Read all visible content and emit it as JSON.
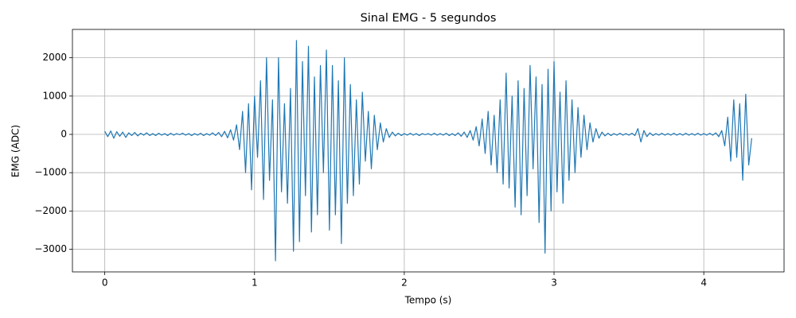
{
  "chart_data": {
    "type": "line",
    "title": "Sinal EMG - 5 segundos",
    "xlabel": "Tempo (s)",
    "ylabel": "EMG (ADC)",
    "color": "#1f77b4",
    "grid": true,
    "xlim": [
      -0.216,
      4.536
    ],
    "ylim": [
      -3590,
      2740
    ],
    "xticks": [
      0,
      1,
      2,
      3,
      4
    ],
    "yticks": [
      {
        "value": -3000,
        "label": "−3000"
      },
      {
        "value": -2000,
        "label": "−2000"
      },
      {
        "value": -1000,
        "label": "−1000"
      },
      0,
      1000,
      2000
    ],
    "x": [
      0,
      0.02,
      0.04,
      0.06,
      0.08,
      0.1,
      0.12,
      0.14,
      0.16,
      0.18,
      0.2,
      0.22,
      0.24,
      0.26,
      0.28,
      0.3,
      0.32,
      0.34,
      0.36,
      0.38,
      0.4,
      0.42,
      0.44,
      0.46,
      0.48,
      0.5,
      0.52,
      0.54,
      0.56,
      0.58,
      0.6,
      0.62,
      0.64,
      0.66,
      0.68,
      0.7,
      0.72,
      0.74,
      0.76,
      0.78,
      0.8,
      0.82,
      0.84,
      0.86,
      0.88,
      0.9,
      0.92,
      0.94,
      0.96,
      0.98,
      1,
      1.02,
      1.04,
      1.06,
      1.08,
      1.1,
      1.12,
      1.14,
      1.16,
      1.18,
      1.2,
      1.22,
      1.24,
      1.26,
      1.28,
      1.3,
      1.32,
      1.34,
      1.36,
      1.38,
      1.4,
      1.42,
      1.44,
      1.46,
      1.48,
      1.5,
      1.52,
      1.54,
      1.56,
      1.58,
      1.6,
      1.62,
      1.64,
      1.66,
      1.68,
      1.7,
      1.72,
      1.74,
      1.76,
      1.78,
      1.8,
      1.82,
      1.84,
      1.86,
      1.88,
      1.9,
      1.92,
      1.94,
      1.96,
      1.98,
      2,
      2.02,
      2.04,
      2.06,
      2.08,
      2.1,
      2.12,
      2.14,
      2.16,
      2.18,
      2.2,
      2.22,
      2.24,
      2.26,
      2.28,
      2.3,
      2.32,
      2.34,
      2.36,
      2.38,
      2.4,
      2.42,
      2.44,
      2.46,
      2.48,
      2.5,
      2.52,
      2.54,
      2.56,
      2.58,
      2.6,
      2.62,
      2.64,
      2.66,
      2.68,
      2.7,
      2.72,
      2.74,
      2.76,
      2.78,
      2.8,
      2.82,
      2.84,
      2.86,
      2.88,
      2.9,
      2.92,
      2.94,
      2.96,
      2.98,
      3,
      3.02,
      3.04,
      3.06,
      3.08,
      3.1,
      3.12,
      3.14,
      3.16,
      3.18,
      3.2,
      3.22,
      3.24,
      3.26,
      3.28,
      3.3,
      3.32,
      3.34,
      3.36,
      3.38,
      3.4,
      3.42,
      3.44,
      3.46,
      3.48,
      3.5,
      3.52,
      3.54,
      3.56,
      3.58,
      3.6,
      3.62,
      3.64,
      3.66,
      3.68,
      3.7,
      3.72,
      3.74,
      3.76,
      3.78,
      3.8,
      3.82,
      3.84,
      3.86,
      3.88,
      3.9,
      3.92,
      3.94,
      3.96,
      3.98,
      4,
      4.02,
      4.04,
      4.06,
      4.08,
      4.1,
      4.12,
      4.14,
      4.16,
      4.18,
      4.2,
      4.22,
      4.24,
      4.26,
      4.28,
      4.3,
      4.32
    ],
    "values": [
      80,
      -60,
      90,
      -100,
      70,
      -50,
      60,
      -80,
      40,
      -30,
      50,
      -40,
      30,
      -20,
      40,
      -30,
      20,
      -30,
      30,
      -20,
      20,
      -30,
      30,
      -20,
      20,
      -10,
      30,
      -20,
      20,
      -30,
      20,
      -20,
      30,
      -30,
      20,
      -20,
      40,
      -30,
      50,
      -60,
      80,
      -90,
      120,
      -150,
      250,
      -400,
      600,
      -1000,
      800,
      -1450,
      1000,
      -600,
      1400,
      -1700,
      2000,
      -1200,
      900,
      -3300,
      2000,
      -1500,
      800,
      -1800,
      1200,
      -3050,
      2450,
      -2800,
      1900,
      -1600,
      2300,
      -2550,
      1500,
      -2100,
      1800,
      -1000,
      2200,
      -2500,
      1800,
      -2100,
      1400,
      -2850,
      2000,
      -1800,
      1300,
      -1600,
      900,
      -1300,
      1100,
      -700,
      600,
      -900,
      500,
      -400,
      300,
      -200,
      150,
      -80,
      60,
      -40,
      30,
      -30,
      20,
      -20,
      30,
      -20,
      20,
      -30,
      20,
      -10,
      20,
      -20,
      30,
      -20,
      20,
      -20,
      30,
      -30,
      20,
      -30,
      40,
      -50,
      60,
      -80,
      100,
      -150,
      200,
      -300,
      400,
      -500,
      600,
      -800,
      500,
      -1000,
      900,
      -1300,
      1600,
      -1400,
      1000,
      -1900,
      1400,
      -2100,
      1200,
      -1600,
      1800,
      -900,
      1500,
      -2300,
      1300,
      -3100,
      1700,
      -2000,
      1900,
      -1500,
      1100,
      -1800,
      1400,
      -1200,
      900,
      -1000,
      700,
      -600,
      500,
      -400,
      300,
      -200,
      150,
      -100,
      60,
      -40,
      30,
      -30,
      20,
      -20,
      30,
      -20,
      20,
      -20,
      30,
      -30,
      150,
      -200,
      100,
      -60,
      40,
      -30,
      20,
      -20,
      30,
      -20,
      20,
      -20,
      30,
      -20,
      20,
      -20,
      30,
      -20,
      20,
      -20,
      30,
      -20,
      20,
      -20,
      30,
      -20,
      40,
      -60,
      100,
      -300,
      450,
      -700,
      900,
      -600,
      800,
      -1200,
      1050,
      -800,
      -100
    ]
  }
}
